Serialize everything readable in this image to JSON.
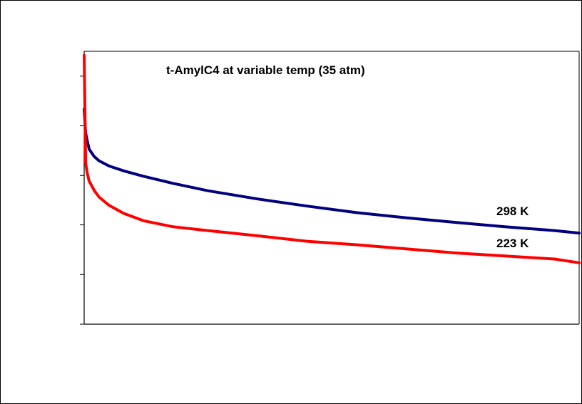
{
  "chart_data": {
    "type": "line",
    "title": "t-AmylC4 at variable temp (35 atm)",
    "xlabel": "",
    "ylabel": "",
    "xlim": [
      0,
      100
    ],
    "ylim": [
      0,
      100
    ],
    "y_ticks": [
      0,
      18.2,
      36.4,
      54.5,
      72.7,
      90.9
    ],
    "x_ticks": [],
    "tick_labels_shown": false,
    "grid": false,
    "legend": "none",
    "series": [
      {
        "name": "298 K",
        "color": "#000080",
        "x": [
          0,
          0.3,
          0.6,
          1,
          2,
          3,
          5,
          8,
          12,
          18,
          25,
          35,
          45,
          55,
          65,
          75,
          85,
          95,
          100
        ],
        "y": [
          78.8,
          70.0,
          67.4,
          64.2,
          61.5,
          59.9,
          58.0,
          56.2,
          54.2,
          51.6,
          48.9,
          45.9,
          43.3,
          40.9,
          39.0,
          37.3,
          35.7,
          34.3,
          33.4
        ]
      },
      {
        "name": "223 K",
        "color": "#ff0000",
        "x": [
          0,
          0.3,
          0.6,
          1,
          2,
          3,
          5,
          8,
          12,
          18,
          25,
          35,
          45,
          55,
          65,
          75,
          85,
          95,
          100
        ],
        "y": [
          98.5,
          59.0,
          55.5,
          52.5,
          49.1,
          46.6,
          43.6,
          40.6,
          37.9,
          35.7,
          34.3,
          32.4,
          30.4,
          29.1,
          27.6,
          26.1,
          25.0,
          23.9,
          22.5
        ]
      }
    ]
  }
}
